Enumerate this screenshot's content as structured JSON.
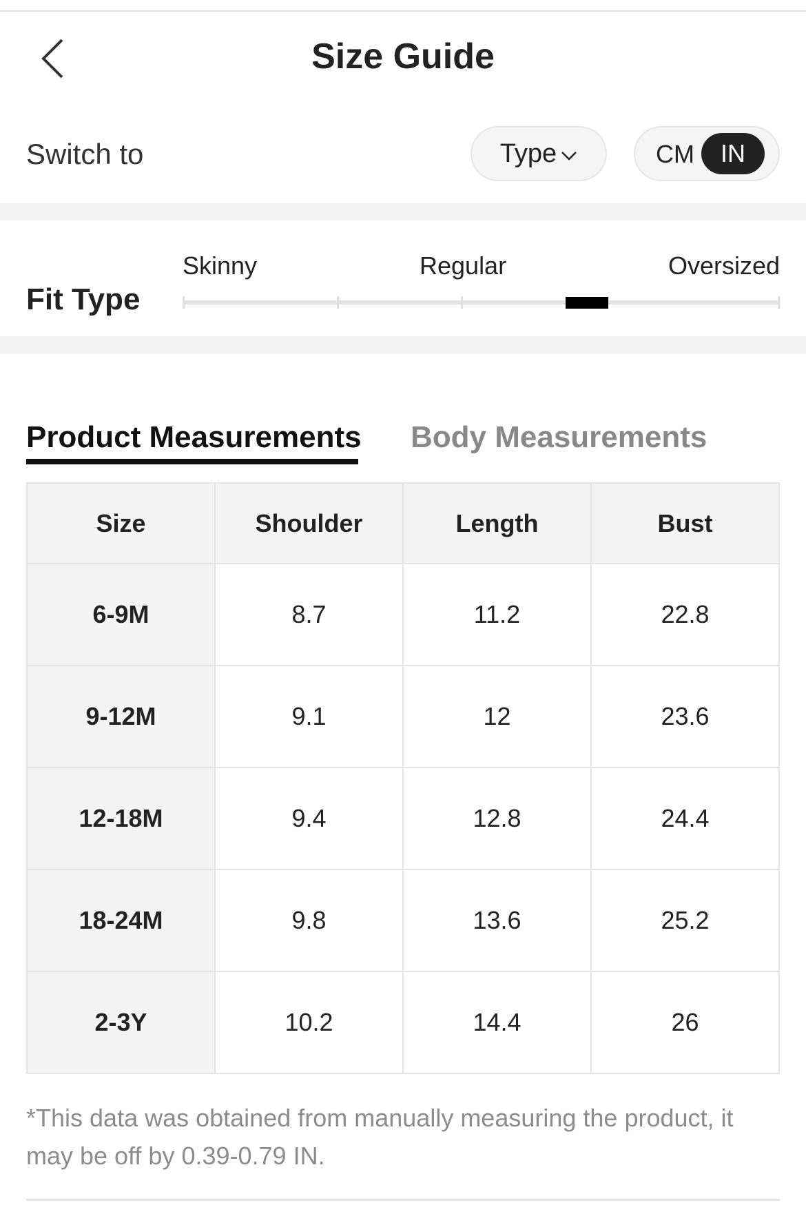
{
  "header": {
    "title": "Size Guide",
    "back_icon": "chevron-left-icon"
  },
  "switch": {
    "label": "Switch to",
    "type_label": "Type",
    "units": [
      "CM",
      "IN"
    ],
    "selected_unit": "IN"
  },
  "fit": {
    "label": "Fit Type",
    "options": [
      "Skinny",
      "Regular",
      "Oversized"
    ],
    "selected_position_percent": 65
  },
  "tabs": [
    {
      "label": "Product Measurements",
      "active": true
    },
    {
      "label": "Body Measurements",
      "active": false
    }
  ],
  "table": {
    "headers": [
      "Size",
      "Shoulder",
      "Length",
      "Bust"
    ],
    "rows": [
      [
        "6-9M",
        "8.7",
        "11.2",
        "22.8"
      ],
      [
        "9-12M",
        "9.1",
        "12",
        "23.6"
      ],
      [
        "12-18M",
        "9.4",
        "12.8",
        "24.4"
      ],
      [
        "18-24M",
        "9.8",
        "13.6",
        "25.2"
      ],
      [
        "2-3Y",
        "10.2",
        "14.4",
        "26"
      ]
    ]
  },
  "note": "*This data was obtained from manually measuring the product, it may be off by 0.39-0.79 IN."
}
